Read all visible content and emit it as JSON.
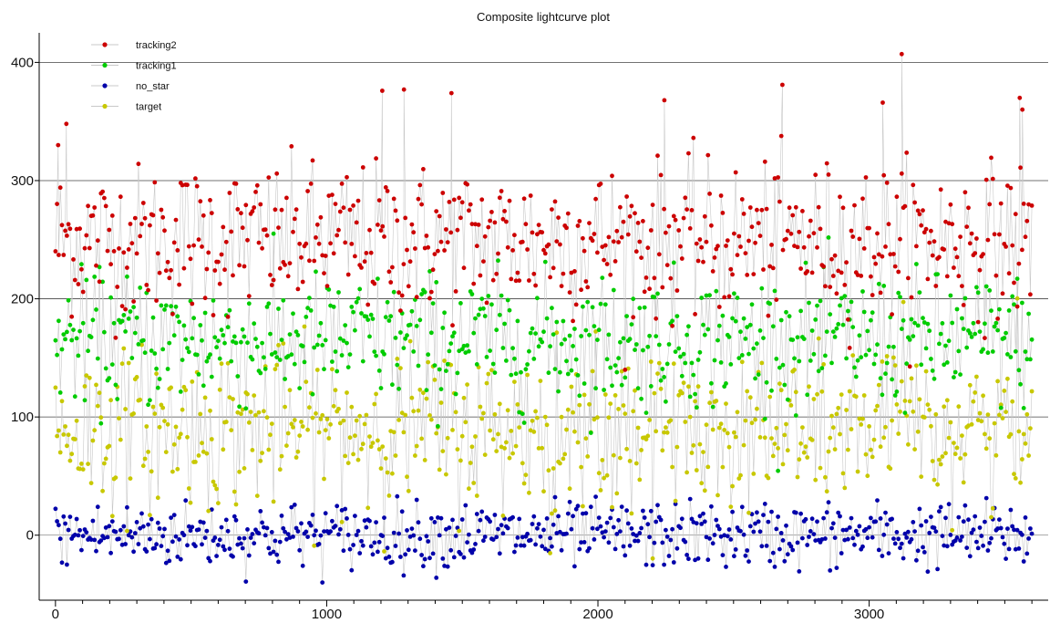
{
  "chart_data": {
    "type": "scatter",
    "title": "Composite lightcurve plot",
    "xlabel": "",
    "ylabel": "",
    "xlim": [
      -60,
      3660
    ],
    "ylim": [
      -55,
      425
    ],
    "x_ticks": [
      0,
      1000,
      2000,
      3000
    ],
    "y_ticks": [
      0,
      100,
      200,
      300,
      400
    ],
    "grid": "horizontal major lines",
    "legend_position": "top-left",
    "connector_color": "#c8c8c8",
    "x_range_of_points": [
      0,
      3600
    ],
    "series": [
      {
        "name": "tracking2",
        "color": "#cc0000",
        "typical_range": [
          185,
          300
        ],
        "center": 250,
        "notable_points": [
          [
            10,
            330
          ],
          [
            40,
            348
          ],
          [
            1205,
            376
          ],
          [
            1285,
            377
          ],
          [
            1460,
            374
          ],
          [
            2245,
            368
          ],
          [
            2680,
            381
          ],
          [
            3050,
            366
          ],
          [
            3120,
            407
          ],
          [
            3555,
            370
          ],
          [
            3565,
            360
          ]
        ]
      },
      {
        "name": "tracking1",
        "color": "#00cc00",
        "typical_range": [
          115,
          215
        ],
        "center": 165
      },
      {
        "name": "no_star",
        "color": "#0000aa",
        "typical_range": [
          -25,
          25
        ],
        "center": 0
      },
      {
        "name": "target",
        "color": "#c8c800",
        "typical_range": [
          30,
          150
        ],
        "center": 90,
        "dip": {
          "x_start": 1810,
          "x_end": 1840,
          "min_value": -20
        }
      }
    ]
  }
}
